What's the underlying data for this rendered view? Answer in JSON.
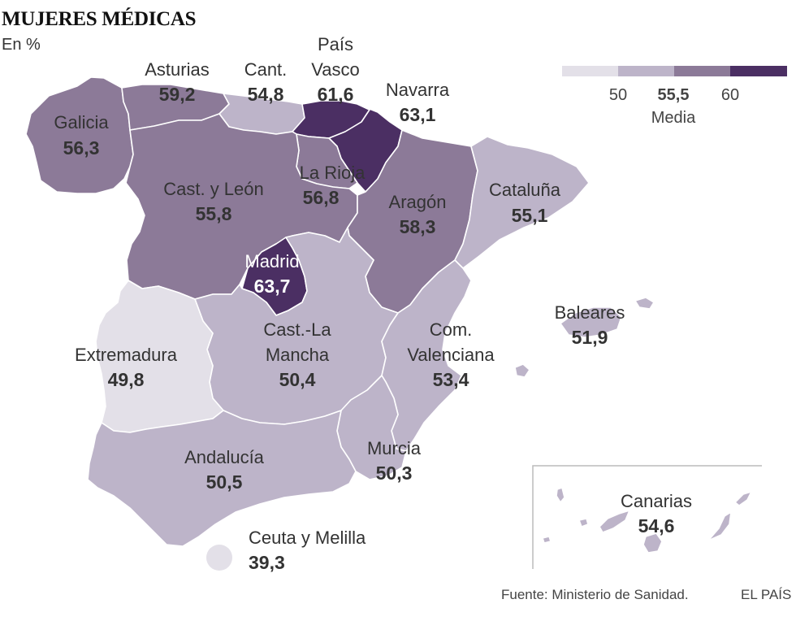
{
  "title": "MUJERES MÉDICAS",
  "subtitle": "En %",
  "source": "Fuente: Ministerio de Sanidad.",
  "brand": "EL PAÍS",
  "colors": {
    "c1": "#e3e0e8",
    "c2": "#bdb4c9",
    "c3": "#8c7a98",
    "c4": "#4b2f63",
    "border": "#ffffff",
    "inset_frame": "#bbbbbb"
  },
  "legend": {
    "ticks": [
      "50",
      "55,5",
      "60"
    ],
    "media_label": "Media"
  },
  "regions": {
    "galicia": {
      "name": "Galicia",
      "value": "56,3"
    },
    "asturias": {
      "name": "Asturias",
      "value": "59,2"
    },
    "cantabria": {
      "name": "Cant.",
      "value": "54,8"
    },
    "pais_vasco": {
      "name1": "País",
      "name2": "Vasco",
      "value": "61,6"
    },
    "navarra": {
      "name": "Navarra",
      "value": "63,1"
    },
    "la_rioja": {
      "name": "La Rioja",
      "value": "56,8"
    },
    "castilla_leon": {
      "name": "Cast. y León",
      "value": "55,8"
    },
    "aragon": {
      "name": "Aragón",
      "value": "58,3"
    },
    "cataluna": {
      "name": "Cataluña",
      "value": "55,1"
    },
    "madrid": {
      "name": "Madrid",
      "value": "63,7"
    },
    "baleares": {
      "name": "Baleares",
      "value": "51,9"
    },
    "extremadura": {
      "name": "Extremadura",
      "value": "49,8"
    },
    "castilla_la_mancha": {
      "name1": "Cast.-La",
      "name2": "Mancha",
      "value": "50,4"
    },
    "com_valenciana": {
      "name1": "Com.",
      "name2": "Valenciana",
      "value": "53,4"
    },
    "murcia": {
      "name": "Murcia",
      "value": "50,3"
    },
    "andalucia": {
      "name": "Andalucía",
      "value": "50,5"
    },
    "canarias": {
      "name": "Canarias",
      "value": "54,6"
    },
    "ceuta_melilla": {
      "name": "Ceuta y Melilla",
      "value": "39,3"
    }
  }
}
